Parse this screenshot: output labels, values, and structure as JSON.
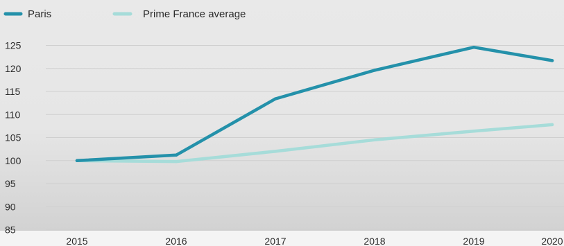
{
  "chart_data": {
    "type": "line",
    "x": [
      "2015",
      "2016",
      "2017",
      "2018",
      "2019",
      "2020"
    ],
    "series": [
      {
        "name": "Paris",
        "values": [
          100,
          101.2,
          113.4,
          119.6,
          124.6,
          121.7
        ],
        "color": "#2491aa"
      },
      {
        "name": "Prime France average",
        "values": [
          100,
          99.8,
          102,
          104.5,
          106.4,
          107.8
        ],
        "color": "#a6dcd9"
      }
    ],
    "ylim": [
      85,
      125
    ],
    "yticks": [
      "85",
      "90",
      "95",
      "100",
      "105",
      "110",
      "115",
      "120",
      "125"
    ],
    "grid": true,
    "legend_position": "top-left",
    "title": "",
    "xlabel": "",
    "ylabel": ""
  }
}
